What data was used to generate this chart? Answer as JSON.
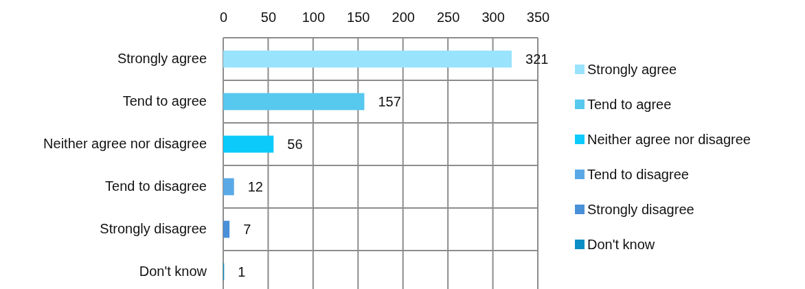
{
  "chart_data": {
    "type": "bar",
    "orientation": "horizontal",
    "stacked": true,
    "categories": [
      "Strongly agree",
      "Tend to agree",
      "Neither agree nor disagree",
      "Tend to disagree",
      "Strongly disagree",
      "Don't know"
    ],
    "series": [
      {
        "name": "Strongly agree",
        "color": "#99e3fd",
        "values": [
          321,
          null,
          null,
          null,
          null,
          null
        ]
      },
      {
        "name": "Tend to agree",
        "color": "#57c8ee",
        "values": [
          null,
          157,
          null,
          null,
          null,
          null
        ]
      },
      {
        "name": "Neither agree nor disagree",
        "color": "#0ccbfb",
        "values": [
          null,
          null,
          56,
          null,
          null,
          null
        ]
      },
      {
        "name": "Tend to disagree",
        "color": "#5aa9e6",
        "values": [
          null,
          null,
          null,
          12,
          null,
          null
        ]
      },
      {
        "name": "Strongly disagree",
        "color": "#4a90d9",
        "values": [
          null,
          null,
          null,
          null,
          7,
          null
        ]
      },
      {
        "name": "Don't know",
        "color": "#0b8fc4",
        "values": [
          null,
          null,
          null,
          null,
          null,
          1
        ]
      }
    ],
    "xlim": [
      0,
      350
    ],
    "xticks": [
      0,
      50,
      100,
      150,
      200,
      250,
      300,
      350
    ],
    "grid": true,
    "data_labels": true,
    "legend": "right"
  }
}
